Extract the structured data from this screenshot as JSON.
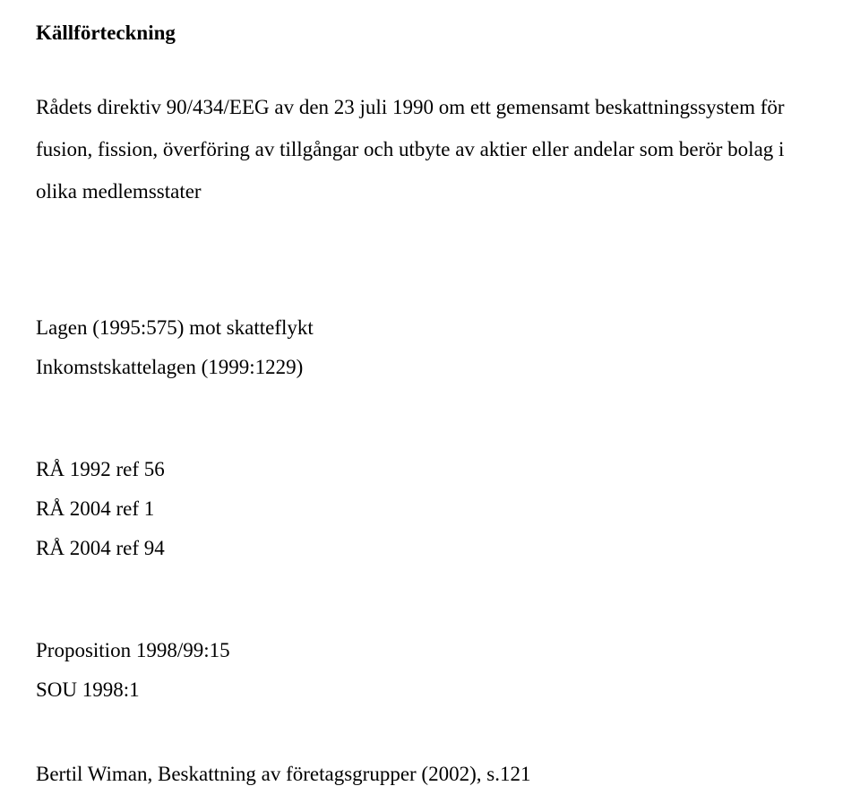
{
  "heading": "Källförteckning",
  "directive_para": "Rådets direktiv 90/434/EEG av den 23 juli 1990 om ett gemensamt beskattningssystem för fusion, fission, överföring av tillgångar och utbyte av aktier eller andelar som berör bolag i olika medlemsstater",
  "law1": "Lagen (1995:575) mot skatteflykt",
  "law2": "Inkomstskattelagen (1999:1229)",
  "case1": "RÅ 1992 ref 56",
  "case2": "RÅ 2004 ref 1",
  "case3": "RÅ 2004 ref 94",
  "prop": "Proposition 1998/99:15",
  "sou": "SOU 1998:1",
  "book": "Bertil Wiman, Beskattning av företagsgrupper (2002), s.121"
}
